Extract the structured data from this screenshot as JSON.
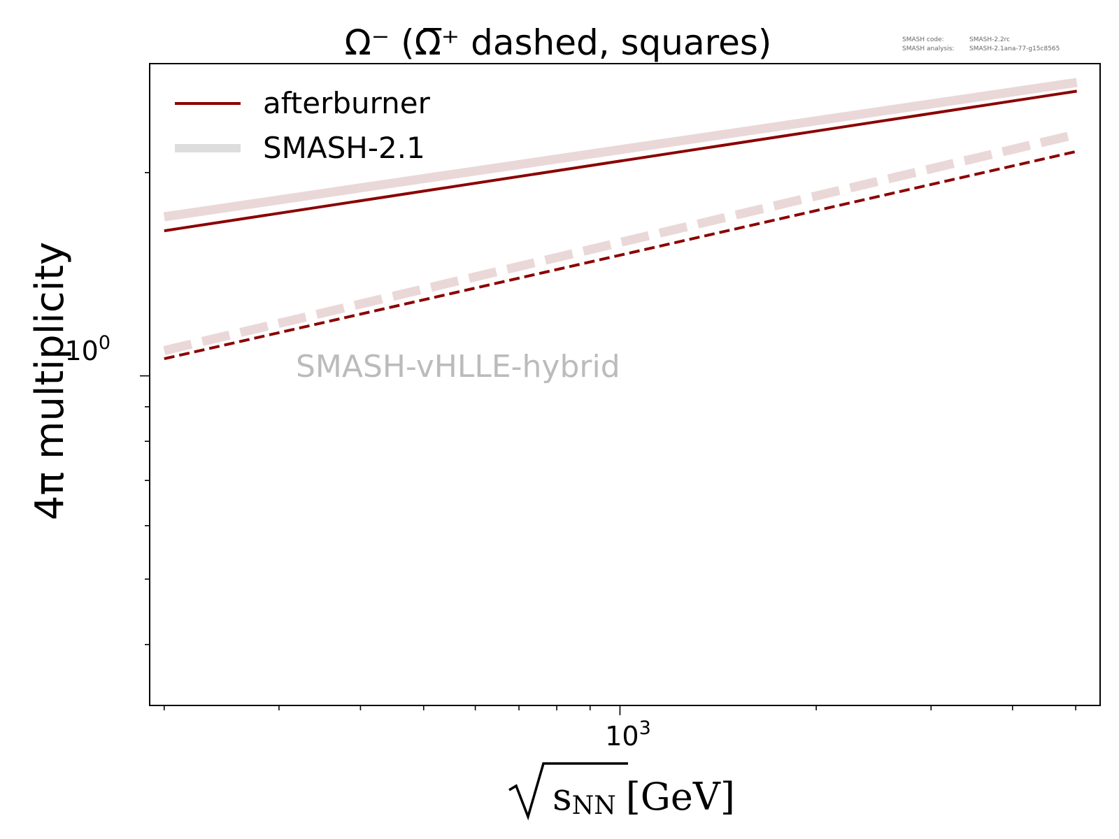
{
  "chart_data": {
    "type": "line",
    "title": "Ω⁻ (Ω̅⁺ dashed, squares)",
    "xlabel": "√sNN [GeV]",
    "xlabel_parts": {
      "radicand": "s",
      "subscript": "NN",
      "unit": "[GeV]"
    },
    "ylabel": "4π multiplicity",
    "x_scale": "log",
    "y_scale": "log",
    "xlim": [
      190,
      5450
    ],
    "ylim": [
      0.325,
      2.9
    ],
    "x_major_tick_labels": [
      {
        "value": 1000,
        "base": "10",
        "exp": "3"
      }
    ],
    "y_major_tick_labels": [
      {
        "value": 1,
        "base": "10",
        "exp": "0"
      }
    ],
    "grid": false,
    "legend": {
      "location": "upper-left",
      "entries": [
        {
          "label": "afterburner",
          "color": "#8b0000",
          "style": "solid-thin"
        },
        {
          "label": "SMASH-2.1",
          "color": "#dddddd",
          "style": "solid-thick"
        }
      ]
    },
    "annotation": "SMASH-vHLLE-hybrid",
    "version_info": {
      "code_label": "SMASH code:",
      "code_value": "SMASH-2.2rc",
      "analysis_label": "SMASH analysis:",
      "analysis_value": "SMASH-2.1ana-77-g15c8565"
    },
    "series": [
      {
        "name": "afterburner",
        "particle": "Ω⁻",
        "style": "solid",
        "color": "#8b0000",
        "x": [
          200,
          5020
        ],
        "y": [
          1.64,
          2.64
        ]
      },
      {
        "particle": "Ω̅⁺",
        "style": "dashed",
        "color": "#8b0000",
        "x": [
          200,
          5020
        ],
        "y": [
          1.06,
          2.15
        ]
      },
      {
        "name": "SMASH-2.1",
        "particle": "Ω⁻",
        "style": "solid",
        "color": "#ead8d8",
        "x": [
          200,
          5020
        ],
        "y": [
          1.72,
          2.72
        ]
      },
      {
        "particle": "Ω̅⁺",
        "style": "dashed",
        "color": "#ead8d8",
        "x": [
          200,
          5020
        ],
        "y": [
          1.09,
          2.28
        ]
      }
    ]
  }
}
